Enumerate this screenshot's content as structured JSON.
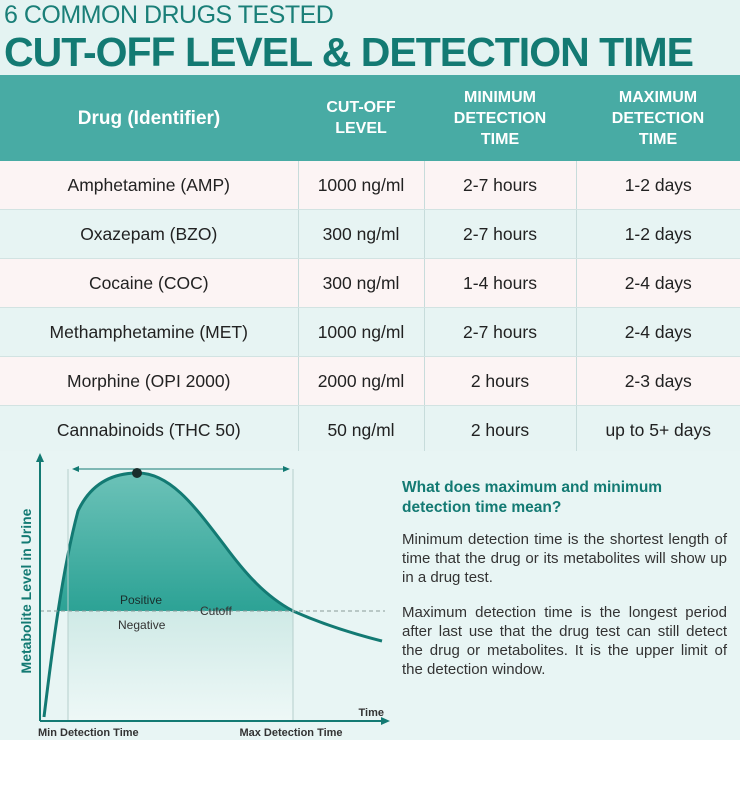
{
  "header": {
    "pretitle": "6 COMMON DRUGS TESTED",
    "title": "CUT-OFF LEVEL & DETECTION TIME"
  },
  "table": {
    "columns": {
      "drug": "Drug (Identifier)",
      "cutoff": [
        "CUT-OFF",
        "LEVEL"
      ],
      "min": [
        "MINIMUM",
        "DETECTION",
        "TIME"
      ],
      "max": [
        "MAXIMUM",
        "DETECTION",
        "TIME"
      ]
    },
    "rows": [
      {
        "drug": "Amphetamine (AMP)",
        "cutoff": "1000 ng/ml",
        "min": "2-7 hours",
        "max": "1-2 days"
      },
      {
        "drug": "Oxazepam (BZO)",
        "cutoff": "300 ng/ml",
        "min": "2-7 hours",
        "max": "1-2 days"
      },
      {
        "drug": "Cocaine (COC)",
        "cutoff": "300 ng/ml",
        "min": "1-4 hours",
        "max": "2-4 days"
      },
      {
        "drug": "Methamphetamine (MET)",
        "cutoff": "1000 ng/ml",
        "min": "2-7 hours",
        "max": "2-4 days"
      },
      {
        "drug": "Morphine (OPI 2000)",
        "cutoff": "2000 ng/ml",
        "min": "2 hours",
        "max": "2-3 days"
      },
      {
        "drug": "Cannabinoids (THC 50)",
        "cutoff": "50 ng/ml",
        "min": "2 hours",
        "max": "up to 5+ days"
      }
    ]
  },
  "diagram": {
    "ylabel": "Metabolite Level in Urine",
    "xlabel": "Time",
    "positive": "Positive",
    "negative": "Negative",
    "cutoff": "Cutoff",
    "min_label": "Min Detection Time",
    "max_label": "Max Detection Time"
  },
  "info": {
    "heading": "What does maximum and minimum detection time mean?",
    "para1": "Minimum detection time is the shortest length of time that the drug or its metabolites will show up in a drug test.",
    "para2": "Maximum detection time is the longest period after last use that the drug test can still detect the drug or metabolites. It is the upper limit of the detection window."
  },
  "colors": {
    "teal": "#137a73",
    "header_bg": "#48aba4",
    "row_pink": "#fcf4f4",
    "row_mint": "#e7f4f3"
  }
}
